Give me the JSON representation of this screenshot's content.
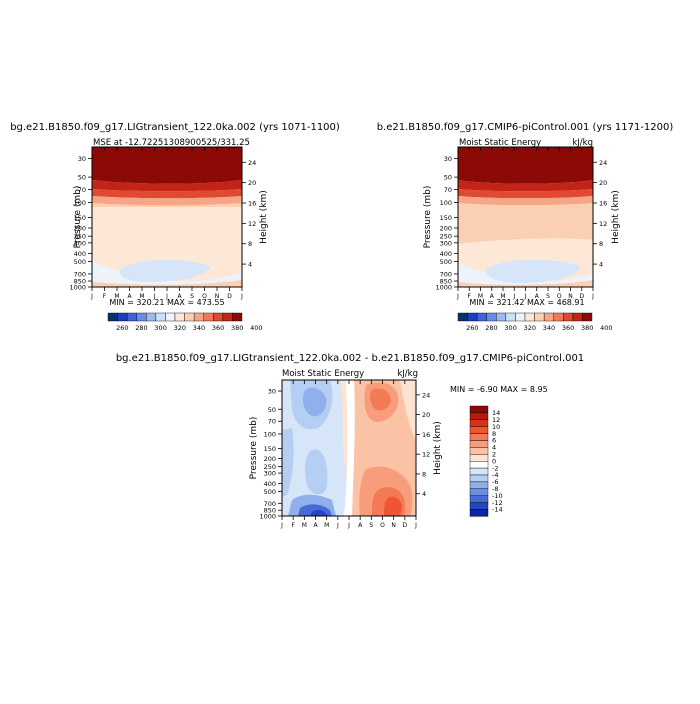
{
  "chart_data": [
    {
      "type": "heatmap",
      "title": "bg.e21.B1850.f09_g17.LIGtransient_122.0ka.002 (yrs 1071-1100)",
      "subtitle": "MSE at -12.72251308900525/331.25",
      "units": "",
      "x_ticks": [
        "J",
        "F",
        "M",
        "A",
        "M",
        "J",
        "J",
        "A",
        "S",
        "O",
        "N",
        "D",
        "J"
      ],
      "y_ticks": [
        "30",
        "50",
        "70",
        "100",
        "150",
        "200",
        "250",
        "300",
        "400",
        "500",
        "700",
        "850",
        "1000"
      ],
      "ylabel": "Pressure (mb)",
      "y2_ticks": [
        "24",
        "20",
        "16",
        "12",
        "8",
        "4"
      ],
      "y2label": "Height (km)",
      "stats": "MIN = 320.21  MAX = 473.55",
      "colorbar_labels": [
        "260",
        "280",
        "300",
        "320",
        "340",
        "360",
        "380",
        "400"
      ],
      "colorbar_colors": [
        "#08306b",
        "#1c3fbf",
        "#3d64d9",
        "#6a8ce6",
        "#9db9f0",
        "#cde0f7",
        "#eef3fb",
        "#fde7d7",
        "#fbcfb4",
        "#f7a685",
        "#ef7a5a",
        "#e04a32",
        "#c22418",
        "#8b0a06"
      ]
    },
    {
      "type": "heatmap",
      "title": "b.e21.B1850.f09_g17.CMIP6-piControl.001 (yrs 1171-1200)",
      "subtitle": "Moist Static Energy",
      "units": "kJ/kg",
      "x_ticks": [
        "J",
        "F",
        "M",
        "A",
        "M",
        "J",
        "J",
        "A",
        "S",
        "O",
        "N",
        "D",
        "J"
      ],
      "y_ticks": [
        "30",
        "50",
        "70",
        "100",
        "150",
        "200",
        "250",
        "300",
        "400",
        "500",
        "700",
        "850",
        "1000"
      ],
      "ylabel": "Pressure (mb)",
      "y2_ticks": [
        "24",
        "20",
        "16",
        "12",
        "8",
        "4"
      ],
      "y2label": "Height (km)",
      "stats": "MIN = 321.42  MAX = 468.91",
      "colorbar_labels": [
        "260",
        "280",
        "300",
        "320",
        "340",
        "360",
        "380",
        "400"
      ],
      "colorbar_colors": [
        "#08306b",
        "#1c3fbf",
        "#3d64d9",
        "#6a8ce6",
        "#9db9f0",
        "#cde0f7",
        "#eef3fb",
        "#fde7d7",
        "#fbcfb4",
        "#f7a685",
        "#ef7a5a",
        "#e04a32",
        "#c22418",
        "#8b0a06"
      ]
    },
    {
      "type": "heatmap",
      "title": "bg.e21.B1850.f09_g17.LIGtransient_122.0ka.002 - b.e21.B1850.f09_g17.CMIP6-piControl.001",
      "subtitle": "Moist Static Energy",
      "units": "kJ/kg",
      "x_ticks": [
        "J",
        "F",
        "M",
        "A",
        "M",
        "J",
        "J",
        "A",
        "S",
        "O",
        "N",
        "D",
        "J"
      ],
      "y_ticks": [
        "30",
        "50",
        "70",
        "100",
        "150",
        "200",
        "250",
        "300",
        "400",
        "500",
        "700",
        "850",
        "1000"
      ],
      "ylabel": "Pressure (mb)",
      "y2_ticks": [
        "24",
        "20",
        "16",
        "12",
        "8",
        "4"
      ],
      "y2label": "Height (km)",
      "stats": "MIN =   -6.90 MAX =    8.95",
      "colorbar_labels": [
        "14",
        "12",
        "10",
        "8",
        "6",
        "4",
        "2",
        "0",
        "-2",
        "-4",
        "-6",
        "-8",
        "-10",
        "-12",
        "-14"
      ],
      "colorbar_colors": [
        "#8b0a06",
        "#b31b10",
        "#d9301c",
        "#ee5533",
        "#f47a55",
        "#f79d7b",
        "#fbc3a6",
        "#fde3d0",
        "#ffffff",
        "#d6e6f8",
        "#b4cff3",
        "#8fb0ea",
        "#6a8fe2",
        "#466ad6",
        "#2446c4",
        "#0c24a6"
      ]
    }
  ]
}
